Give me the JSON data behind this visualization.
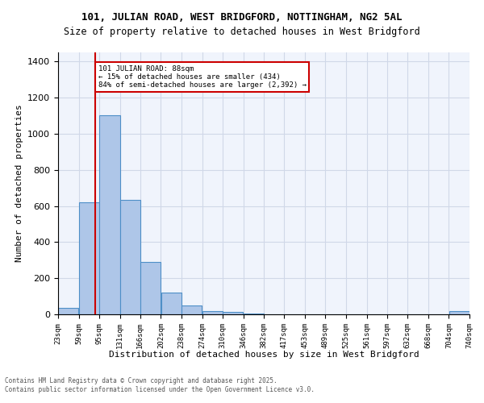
{
  "title_line1": "101, JULIAN ROAD, WEST BRIDGFORD, NOTTINGHAM, NG2 5AL",
  "title_line2": "Size of property relative to detached houses in West Bridgford",
  "xlabel": "Distribution of detached houses by size in West Bridgford",
  "ylabel": "Number of detached properties",
  "bin_edges": [
    23,
    59,
    95,
    131,
    166,
    202,
    238,
    274,
    310,
    346,
    382,
    417,
    453,
    489,
    525,
    561,
    597,
    632,
    668,
    704,
    740
  ],
  "bin_labels": [
    "23sqm",
    "59sqm",
    "95sqm",
    "131sqm",
    "166sqm",
    "202sqm",
    "238sqm",
    "274sqm",
    "310sqm",
    "346sqm",
    "382sqm",
    "417sqm",
    "453sqm",
    "489sqm",
    "525sqm",
    "561sqm",
    "597sqm",
    "632sqm",
    "668sqm",
    "704sqm",
    "740sqm"
  ],
  "counts": [
    35,
    620,
    1100,
    635,
    290,
    120,
    50,
    20,
    15,
    5,
    2,
    2,
    2,
    2,
    2,
    2,
    1,
    1,
    1,
    20
  ],
  "bar_color": "#aec6e8",
  "bar_edge_color": "#4e8fc7",
  "vline_x": 88,
  "vline_color": "#cc0000",
  "annotation_title": "101 JULIAN ROAD: 88sqm",
  "annotation_line1": "← 15% of detached houses are smaller (434)",
  "annotation_line2": "84% of semi-detached houses are larger (2,392) →",
  "annotation_box_color": "#cc0000",
  "grid_color": "#d0d8e8",
  "background_color": "#f0f4fc",
  "ylim": [
    0,
    1450
  ],
  "yticks": [
    0,
    200,
    400,
    600,
    800,
    1000,
    1200,
    1400
  ],
  "footer_line1": "Contains HM Land Registry data © Crown copyright and database right 2025.",
  "footer_line2": "Contains public sector information licensed under the Open Government Licence v3.0."
}
